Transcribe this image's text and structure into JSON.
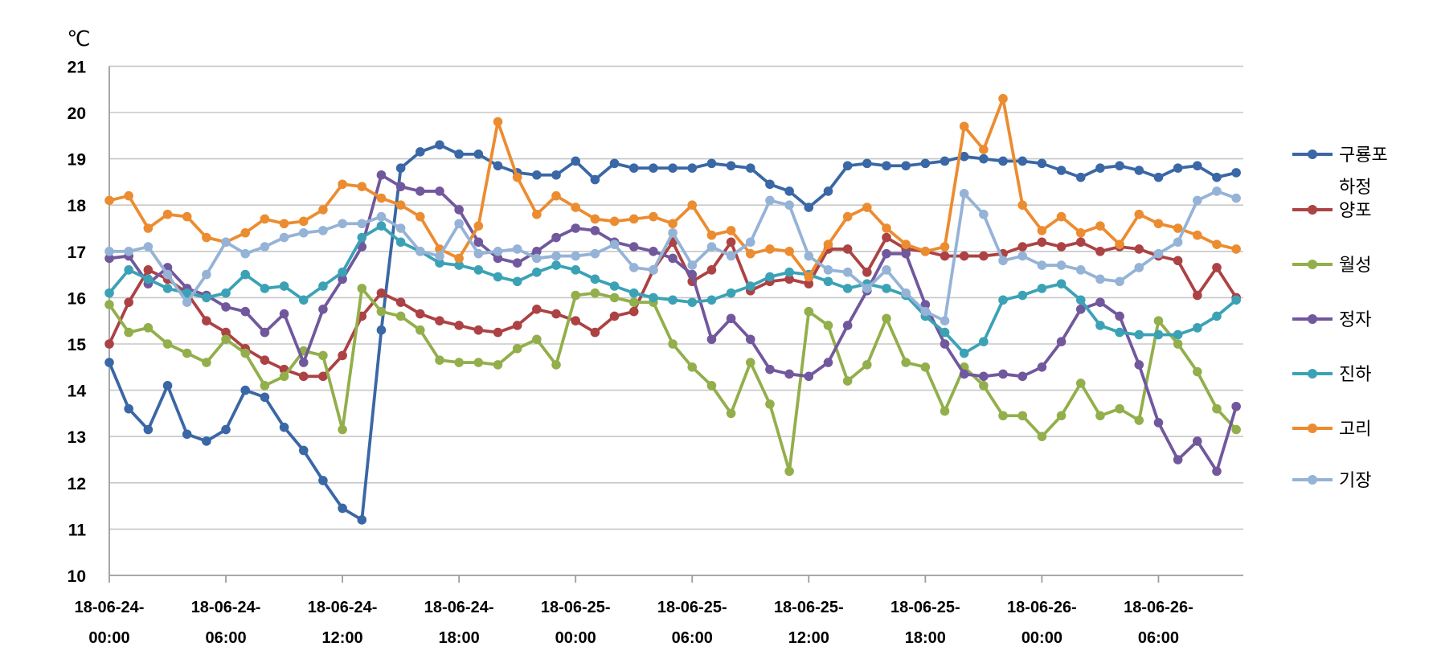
{
  "chart_data": {
    "type": "line",
    "title": "",
    "unit_label": "℃",
    "x_axis": {
      "description": "datetime, points hourly from 18-06-24 00:00 to 18-06-26 10:00",
      "tick_interval_hours": 6,
      "ticks": [
        {
          "date": "18-06-24-",
          "time": "00:00"
        },
        {
          "date": "18-06-24-",
          "time": "06:00"
        },
        {
          "date": "18-06-24-",
          "time": "12:00"
        },
        {
          "date": "18-06-24-",
          "time": "18:00"
        },
        {
          "date": "18-06-25-",
          "time": "00:00"
        },
        {
          "date": "18-06-25-",
          "time": "06:00"
        },
        {
          "date": "18-06-25-",
          "time": "12:00"
        },
        {
          "date": "18-06-25-",
          "time": "18:00"
        },
        {
          "date": "18-06-26-",
          "time": "00:00"
        },
        {
          "date": "18-06-26-",
          "time": "06:00"
        }
      ]
    },
    "y_axis": {
      "min": 10,
      "max": 21,
      "step": 1,
      "ticks": [
        21,
        20,
        19,
        18,
        17,
        16,
        15,
        14,
        13,
        12,
        11,
        10
      ],
      "grid": true
    },
    "legend_position": "right",
    "series": [
      {
        "name": "구룡포 하정",
        "id": "guryongpo-hajeong",
        "legend_lines": [
          "구룡포",
          "하정"
        ],
        "color": "#3A67A5",
        "values": [
          14.6,
          13.6,
          13.15,
          14.1,
          13.05,
          12.9,
          13.15,
          14.0,
          13.85,
          13.2,
          12.7,
          12.05,
          11.45,
          11.2,
          15.3,
          18.8,
          19.15,
          19.3,
          19.1,
          19.1,
          18.85,
          18.7,
          18.65,
          18.65,
          18.95,
          18.55,
          18.9,
          18.8,
          18.8,
          18.8,
          18.8,
          18.9,
          18.85,
          18.8,
          18.45,
          18.3,
          17.95,
          18.3,
          18.85,
          18.9,
          18.85,
          18.85,
          18.9,
          18.95,
          19.05,
          19.0,
          18.95,
          18.95,
          18.9,
          18.75,
          18.6,
          18.8,
          18.85,
          18.75,
          18.6,
          18.8,
          18.85,
          18.6,
          18.7
        ]
      },
      {
        "name": "양포",
        "id": "yangpo",
        "legend_lines": [
          "양포"
        ],
        "color": "#AC4244",
        "values": [
          15.0,
          15.9,
          16.6,
          16.4,
          16.1,
          15.5,
          15.25,
          14.9,
          14.65,
          14.45,
          14.3,
          14.3,
          14.75,
          15.6,
          16.1,
          15.9,
          15.65,
          15.5,
          15.4,
          15.3,
          15.25,
          15.4,
          15.75,
          15.65,
          15.5,
          15.25,
          15.6,
          15.7,
          16.6,
          17.2,
          16.35,
          16.6,
          17.2,
          16.15,
          16.35,
          16.4,
          16.3,
          17.05,
          17.05,
          16.55,
          17.3,
          17.05,
          17.0,
          16.9,
          16.9,
          16.9,
          16.95,
          17.1,
          17.2,
          17.1,
          17.2,
          17.0,
          17.1,
          17.05,
          16.9,
          16.8,
          16.05,
          16.65,
          16.0
        ]
      },
      {
        "name": "월성",
        "id": "wolseong",
        "legend_lines": [
          "월성"
        ],
        "color": "#92AF4B",
        "values": [
          15.85,
          15.25,
          15.35,
          15.0,
          14.8,
          14.6,
          15.1,
          14.8,
          14.1,
          14.3,
          14.85,
          14.75,
          13.15,
          16.2,
          15.7,
          15.6,
          15.3,
          14.65,
          14.6,
          14.6,
          14.55,
          14.9,
          15.1,
          14.55,
          16.05,
          16.1,
          16.0,
          15.9,
          15.9,
          15.0,
          14.5,
          14.1,
          13.5,
          14.6,
          13.7,
          12.25,
          15.7,
          15.4,
          14.2,
          14.55,
          15.55,
          14.6,
          14.5,
          13.55,
          14.5,
          14.1,
          13.45,
          13.45,
          13.0,
          13.45,
          14.15,
          13.45,
          13.6,
          13.35,
          15.5,
          15.0,
          14.4,
          13.6,
          13.15
        ]
      },
      {
        "name": "정자",
        "id": "jeongja",
        "legend_lines": [
          "정자"
        ],
        "color": "#71589D",
        "values": [
          16.85,
          16.9,
          16.3,
          16.65,
          16.2,
          16.05,
          15.8,
          15.7,
          15.25,
          15.65,
          14.6,
          15.75,
          16.4,
          17.1,
          18.65,
          18.4,
          18.3,
          18.3,
          17.9,
          17.2,
          16.85,
          16.75,
          17.0,
          17.3,
          17.5,
          17.45,
          17.2,
          17.1,
          17.0,
          16.85,
          16.5,
          15.1,
          15.55,
          15.1,
          14.45,
          14.35,
          14.3,
          14.6,
          15.4,
          16.15,
          16.95,
          16.95,
          15.85,
          15.0,
          14.35,
          14.3,
          14.35,
          14.3,
          14.5,
          15.05,
          15.75,
          15.9,
          15.6,
          14.55,
          13.3,
          12.5,
          12.9,
          12.25,
          13.65
        ]
      },
      {
        "name": "진하",
        "id": "jinha",
        "legend_lines": [
          "진하"
        ],
        "color": "#3BA2B6",
        "values": [
          16.1,
          16.6,
          16.4,
          16.2,
          16.1,
          16.0,
          16.1,
          16.5,
          16.2,
          16.25,
          15.95,
          16.25,
          16.55,
          17.3,
          17.55,
          17.2,
          17.0,
          16.75,
          16.7,
          16.6,
          16.45,
          16.35,
          16.55,
          16.7,
          16.6,
          16.4,
          16.25,
          16.1,
          16.0,
          15.95,
          15.9,
          15.95,
          16.1,
          16.25,
          16.45,
          16.55,
          16.5,
          16.35,
          16.2,
          16.3,
          16.2,
          16.05,
          15.6,
          15.25,
          14.8,
          15.05,
          15.95,
          16.05,
          16.2,
          16.3,
          15.95,
          15.4,
          15.25,
          15.2,
          15.2,
          15.2,
          15.35,
          15.6,
          15.95
        ]
      },
      {
        "name": "고리",
        "id": "gori",
        "legend_lines": [
          "고리"
        ],
        "color": "#EC8C30",
        "values": [
          18.1,
          18.2,
          17.5,
          17.8,
          17.75,
          17.3,
          17.2,
          17.4,
          17.7,
          17.6,
          17.65,
          17.9,
          18.45,
          18.4,
          18.15,
          18.0,
          17.75,
          17.05,
          16.85,
          17.55,
          19.8,
          18.6,
          17.8,
          18.2,
          17.95,
          17.7,
          17.65,
          17.7,
          17.75,
          17.6,
          18.0,
          17.35,
          17.45,
          16.95,
          17.05,
          17.0,
          16.45,
          17.15,
          17.75,
          17.95,
          17.5,
          17.15,
          17.0,
          17.1,
          19.7,
          19.2,
          20.3,
          18.0,
          17.45,
          17.75,
          17.4,
          17.55,
          17.15,
          17.8,
          17.6,
          17.5,
          17.35,
          17.15,
          17.05
        ]
      },
      {
        "name": "기장",
        "id": "gijang",
        "legend_lines": [
          "기장"
        ],
        "color": "#95B3D7",
        "values": [
          17.0,
          17.0,
          17.1,
          16.5,
          15.9,
          16.5,
          17.2,
          16.95,
          17.1,
          17.3,
          17.4,
          17.45,
          17.6,
          17.6,
          17.75,
          17.5,
          17.0,
          16.9,
          17.6,
          16.95,
          17.0,
          17.05,
          16.85,
          16.9,
          16.9,
          16.95,
          17.15,
          16.65,
          16.6,
          17.4,
          16.7,
          17.1,
          16.9,
          17.2,
          18.1,
          18.0,
          16.9,
          16.6,
          16.55,
          16.2,
          16.6,
          16.1,
          15.7,
          15.5,
          18.25,
          17.8,
          16.8,
          16.9,
          16.7,
          16.7,
          16.6,
          16.4,
          16.35,
          16.65,
          16.95,
          17.2,
          18.1,
          18.3,
          18.15
        ]
      }
    ],
    "colors": {
      "grid": "#C8C8C8",
      "axis": "#9C9C9C",
      "text": "#000000",
      "background": "#FFFFFF"
    }
  }
}
